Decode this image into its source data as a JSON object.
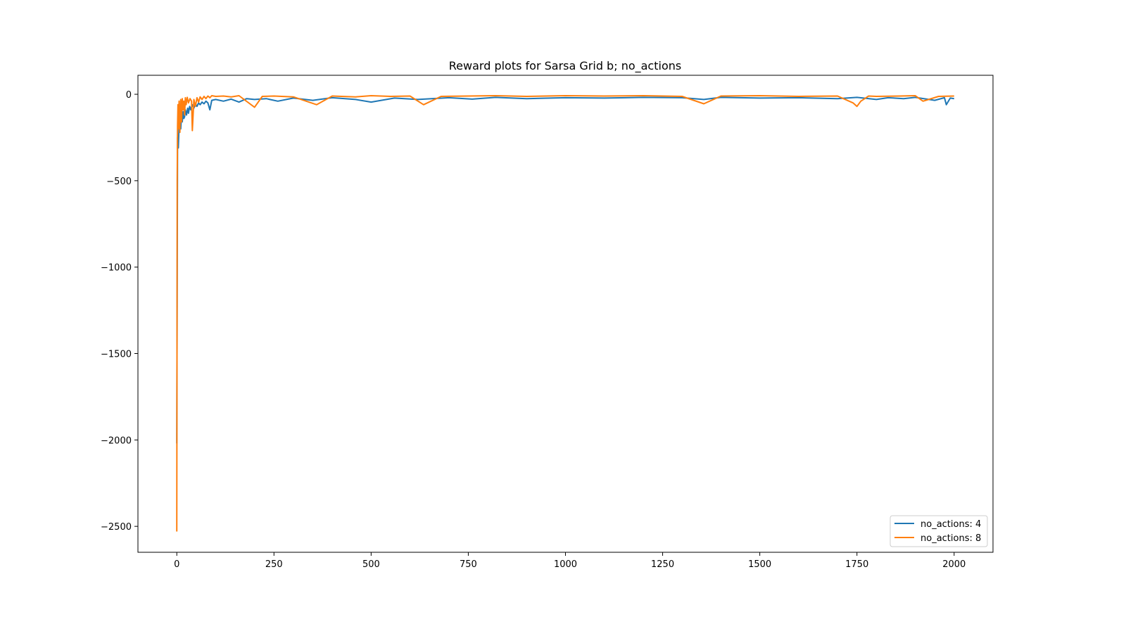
{
  "chart_data": {
    "type": "line",
    "title": "Reward plots for Sarsa Grid b; no_actions",
    "xlabel": "",
    "ylabel": "",
    "xlim": [
      -100,
      2100
    ],
    "ylim": [
      -2650,
      110
    ],
    "x_ticks": [
      0,
      250,
      500,
      750,
      1000,
      1250,
      1500,
      1750,
      2000
    ],
    "x_tick_labels": [
      "0",
      "250",
      "500",
      "750",
      "1000",
      "1250",
      "1500",
      "1750",
      "2000"
    ],
    "y_ticks": [
      0,
      -500,
      -1000,
      -1500,
      -2000,
      -2500
    ],
    "y_tick_labels": [
      "0",
      "−500",
      "−1000",
      "−1500",
      "−2000",
      "−2500"
    ],
    "grid": false,
    "legend_position": "lower-right",
    "series": [
      {
        "name": "no_actions: 4",
        "color": "#1f77b4",
        "x": [
          0,
          2,
          4,
          6,
          8,
          10,
          12,
          14,
          16,
          18,
          20,
          22,
          25,
          28,
          30,
          33,
          36,
          40,
          44,
          48,
          52,
          56,
          60,
          65,
          70,
          75,
          80,
          85,
          90,
          100,
          120,
          140,
          160,
          180,
          200,
          230,
          260,
          300,
          350,
          400,
          460,
          500,
          560,
          620,
          700,
          760,
          820,
          900,
          1000,
          1100,
          1200,
          1300,
          1356,
          1400,
          1500,
          1600,
          1700,
          1750,
          1800,
          1830,
          1870,
          1900,
          1950,
          1975,
          1980,
          1990,
          2000
        ],
        "y": [
          -2020,
          -250,
          -310,
          -180,
          -150,
          -200,
          -120,
          -160,
          -100,
          -140,
          -130,
          -90,
          -120,
          -80,
          -110,
          -70,
          -90,
          -60,
          -80,
          -55,
          -70,
          -50,
          -60,
          -45,
          -55,
          -40,
          -50,
          -90,
          -35,
          -30,
          -40,
          -28,
          -45,
          -25,
          -30,
          -25,
          -40,
          -22,
          -35,
          -20,
          -30,
          -45,
          -22,
          -30,
          -20,
          -28,
          -18,
          -25,
          -20,
          -22,
          -18,
          -20,
          -30,
          -18,
          -22,
          -20,
          -25,
          -18,
          -30,
          -20,
          -25,
          -18,
          -35,
          -20,
          -60,
          -22,
          -25
        ]
      },
      {
        "name": "no_actions: 8",
        "color": "#ff7f0e",
        "x": [
          0,
          1,
          2,
          3,
          4,
          6,
          8,
          10,
          12,
          14,
          16,
          18,
          20,
          22,
          24,
          27,
          30,
          34,
          38,
          40,
          44,
          48,
          52,
          56,
          60,
          65,
          70,
          75,
          80,
          85,
          90,
          100,
          120,
          140,
          160,
          200,
          220,
          250,
          300,
          360,
          400,
          460,
          500,
          550,
          600,
          635,
          680,
          750,
          820,
          900,
          1000,
          1100,
          1200,
          1300,
          1356,
          1400,
          1500,
          1600,
          1700,
          1740,
          1750,
          1760,
          1780,
          1800,
          1860,
          1900,
          1920,
          1960,
          2000
        ],
        "y": [
          -2530,
          -500,
          -180,
          -60,
          -200,
          -40,
          -220,
          -30,
          -160,
          -25,
          -90,
          -40,
          -120,
          -20,
          -60,
          -18,
          -50,
          -25,
          -40,
          -210,
          -30,
          -70,
          -20,
          -45,
          -15,
          -30,
          -12,
          -25,
          -10,
          -20,
          -8,
          -12,
          -10,
          -15,
          -8,
          -75,
          -12,
          -10,
          -15,
          -60,
          -10,
          -15,
          -8,
          -12,
          -10,
          -60,
          -12,
          -10,
          -8,
          -12,
          -8,
          -10,
          -8,
          -12,
          -55,
          -10,
          -8,
          -12,
          -10,
          -50,
          -70,
          -40,
          -10,
          -12,
          -10,
          -8,
          -40,
          -12,
          -10
        ]
      }
    ]
  }
}
